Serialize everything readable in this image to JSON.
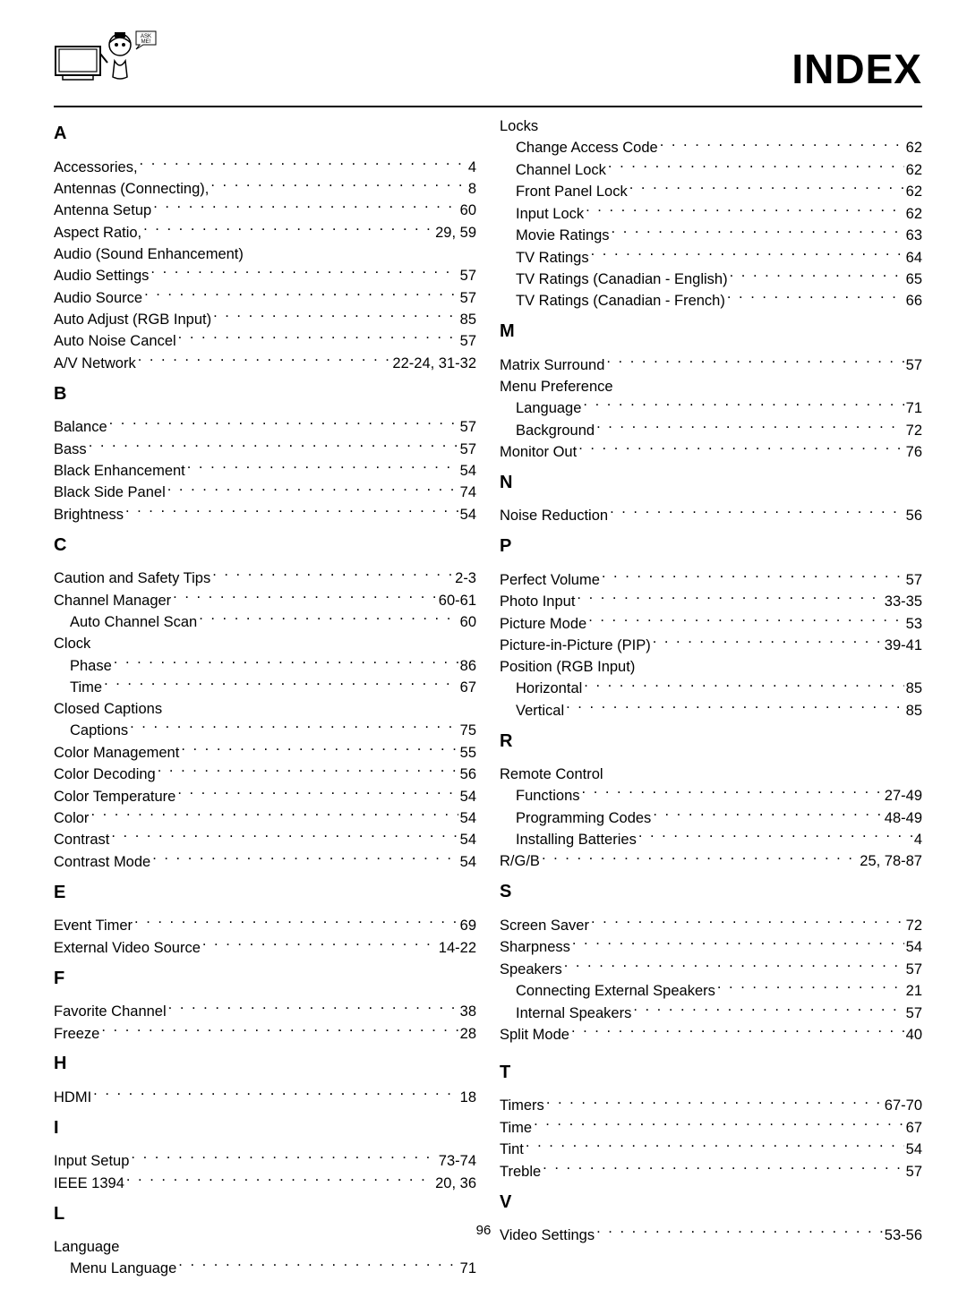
{
  "title": "INDEX",
  "page_number": "96",
  "left_column": [
    {
      "letter": "A",
      "entries": [
        {
          "label": "Accessories,",
          "page": "4"
        },
        {
          "label": "Antennas (Connecting),",
          "page": "8"
        },
        {
          "label": "Antenna Setup",
          "page": "60"
        },
        {
          "label": "Aspect Ratio,",
          "page": "29, 59"
        },
        {
          "label": "Audio (Sound Enhancement)",
          "heading": true
        },
        {
          "label": "Audio Settings",
          "page": "57"
        },
        {
          "label": "Audio Source",
          "page": "57"
        },
        {
          "label": "Auto Adjust (RGB Input)",
          "page": "85"
        },
        {
          "label": "Auto Noise Cancel",
          "page": "57"
        },
        {
          "label": "A/V Network",
          "page": "22-24, 31-32"
        }
      ]
    },
    {
      "letter": "B",
      "entries": [
        {
          "label": "Balance",
          "page": "57"
        },
        {
          "label": "Bass",
          "page": "57"
        },
        {
          "label": "Black Enhancement",
          "page": "54"
        },
        {
          "label": "Black Side Panel",
          "page": "74"
        },
        {
          "label": "Brightness",
          "page": "54"
        }
      ]
    },
    {
      "letter": "C",
      "entries": [
        {
          "label": "Caution and Safety Tips",
          "page": "2-3"
        },
        {
          "label": "Channel Manager",
          "page": "60-61"
        },
        {
          "label": "Auto Channel Scan",
          "page": "60",
          "indent": true
        },
        {
          "label": "Clock",
          "heading": true
        },
        {
          "label": "Phase",
          "page": "86",
          "indent": true
        },
        {
          "label": "Time",
          "page": "67",
          "indent": true
        },
        {
          "label": "Closed Captions",
          "heading": true
        },
        {
          "label": "Captions",
          "page": "75",
          "indent": true
        },
        {
          "label": "Color Management",
          "page": "55"
        },
        {
          "label": "Color Decoding",
          "page": "56"
        },
        {
          "label": "Color Temperature",
          "page": "54"
        },
        {
          "label": "Color",
          "page": "54"
        },
        {
          "label": "Contrast",
          "page": "54"
        },
        {
          "label": "Contrast Mode",
          "page": "54"
        }
      ]
    },
    {
      "letter": "E",
      "entries": [
        {
          "label": "Event Timer",
          "page": "69"
        },
        {
          "label": "External Video Source",
          "page": "14-22"
        }
      ]
    },
    {
      "letter": "F",
      "entries": [
        {
          "label": "Favorite Channel",
          "page": "38"
        },
        {
          "label": "Freeze",
          "page": "28"
        }
      ]
    },
    {
      "letter": "H",
      "entries": [
        {
          "label": "HDMI",
          "page": "18"
        }
      ]
    },
    {
      "letter": "I",
      "entries": [
        {
          "label": "Input Setup",
          "page": "73-74"
        },
        {
          "label": "IEEE 1394",
          "page": "20, 36"
        }
      ]
    },
    {
      "letter": "L",
      "entries": [
        {
          "label": "Language",
          "heading": true
        },
        {
          "label": "Menu Language",
          "page": "71",
          "indent": true
        }
      ]
    }
  ],
  "right_column": [
    {
      "letter": null,
      "entries": [
        {
          "label": "Locks",
          "heading": true
        },
        {
          "label": "Change Access Code",
          "page": " 62",
          "indent": true
        },
        {
          "label": "Channel Lock",
          "page": "62",
          "indent": true
        },
        {
          "label": "Front Panel Lock",
          "page": "62",
          "indent": true
        },
        {
          "label": "Input Lock",
          "page": "62",
          "indent": true
        },
        {
          "label": "Movie Ratings",
          "page": "63",
          "indent": true
        },
        {
          "label": "TV Ratings",
          "page": "64",
          "indent": true
        },
        {
          "label": "TV Ratings (Canadian - English)",
          "page": "65",
          "indent": true
        },
        {
          "label": "TV Ratings (Canadian - French)",
          "page": "66",
          "indent": true
        }
      ]
    },
    {
      "letter": "M",
      "entries": [
        {
          "label": "Matrix Surround",
          "page": "57"
        },
        {
          "label": "Menu Preference",
          "heading": true
        },
        {
          "label": "Language",
          "page": "71",
          "indent": true
        },
        {
          "label": "Background",
          "page": "72",
          "indent": true
        },
        {
          "label": "Monitor Out",
          "page": "76"
        }
      ]
    },
    {
      "letter": "N",
      "entries": [
        {
          "label": "Noise Reduction",
          "page": "56"
        }
      ]
    },
    {
      "letter": "P",
      "entries": [
        {
          "label": "Perfect Volume",
          "page": "57"
        },
        {
          "label": "Photo Input",
          "page": "33-35"
        },
        {
          "label": "Picture Mode",
          "page": "53"
        },
        {
          "label": "Picture-in-Picture (PIP)",
          "page": "39-41"
        },
        {
          "label": "Position (RGB Input)",
          "heading": true
        },
        {
          "label": "Horizontal",
          "page": "85",
          "indent": true
        },
        {
          "label": "Vertical",
          "page": "85",
          "indent": true
        }
      ]
    },
    {
      "letter": "R",
      "entries": [
        {
          "label": "Remote Control",
          "heading": true
        },
        {
          "label": "Functions",
          "page": "27-49",
          "indent": true
        },
        {
          "label": "Programming Codes",
          "page": "48-49",
          "indent": true
        },
        {
          "label": "Installing Batteries",
          "page": "4",
          "indent": true
        },
        {
          "label": "R/G/B",
          "page": "25, 78-87"
        }
      ]
    },
    {
      "letter": "S",
      "entries": [
        {
          "label": "Screen Saver",
          "page": "72"
        },
        {
          "label": "Sharpness",
          "page": "54"
        },
        {
          "label": "Speakers",
          "page": "57"
        },
        {
          "label": "Connecting External Speakers",
          "page": "21",
          "indent": true
        },
        {
          "label": "Internal Speakers",
          "page": "57",
          "indent": true
        },
        {
          "label": "Split Mode",
          "page": "40"
        }
      ]
    },
    {
      "letter": "T",
      "extra_gap": true,
      "entries": [
        {
          "label": "Timers",
          "page": "67-70"
        },
        {
          "label": "Time",
          "page": "67"
        },
        {
          "label": "Tint",
          "page": "54"
        },
        {
          "label": "Treble",
          "page": "57"
        }
      ]
    },
    {
      "letter": "V",
      "entries": [
        {
          "label": "Video Settings",
          "page": "53-56"
        }
      ]
    }
  ]
}
